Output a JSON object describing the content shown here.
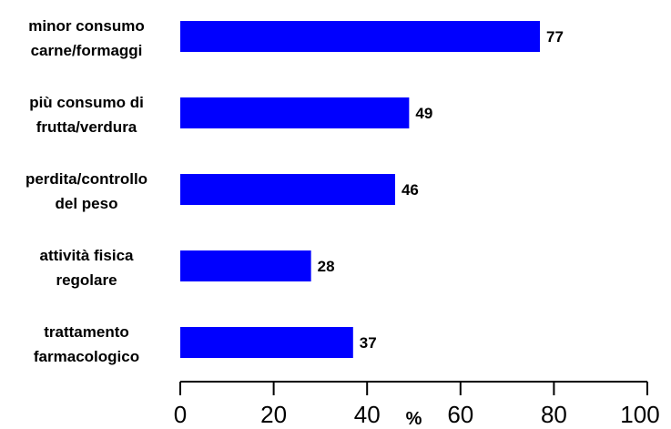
{
  "chart_data": {
    "type": "bar",
    "orientation": "horizontal",
    "categories": [
      [
        "minor consumo",
        "carne/formaggi"
      ],
      [
        "più consumo di",
        "frutta/verdura"
      ],
      [
        "perdita/controllo",
        "del peso"
      ],
      [
        "attività fisica",
        "regolare"
      ],
      [
        "trattamento",
        "farmacologico"
      ]
    ],
    "values": [
      77,
      49,
      46,
      28,
      37
    ],
    "xlabel": "%",
    "xlim": [
      0,
      100
    ],
    "xticks": [
      0,
      20,
      40,
      60,
      80,
      100
    ],
    "bar_color": "#0000ff",
    "grid": false,
    "legend": "none",
    "title": "",
    "ylabel": ""
  }
}
